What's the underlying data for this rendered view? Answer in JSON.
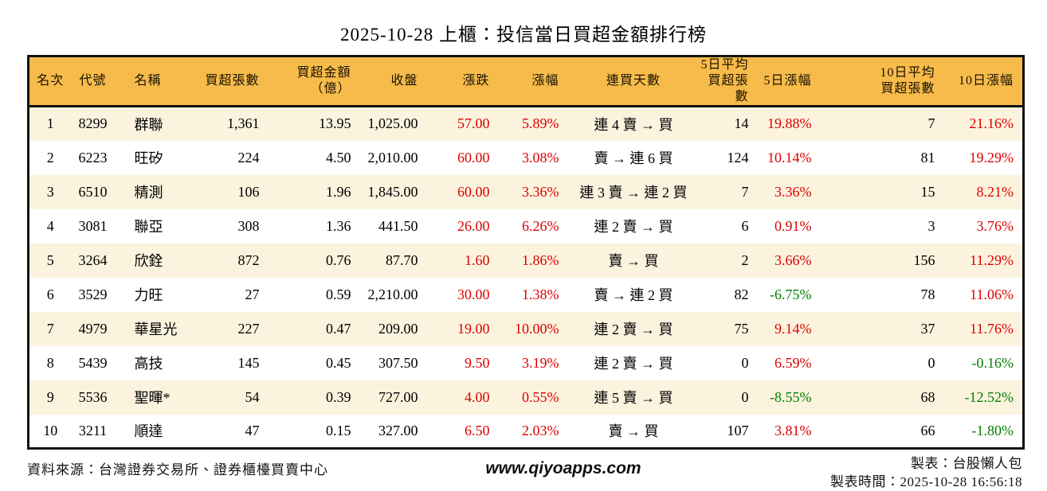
{
  "chart_data": {
    "type": "table",
    "title": "2025-10-28 上櫃：投信當日買超金額排行榜",
    "columns": [
      "名次",
      "代號",
      "名稱",
      "買超張數",
      "買超金額\n（億）",
      "收盤",
      "漲跌",
      "漲幅",
      "連買天數",
      "5日平均\n買超張數",
      "5日漲幅",
      "10日平均\n買超張數",
      "10日漲幅"
    ],
    "rows": [
      {
        "rank": "1",
        "code": "8299",
        "name": "群聯",
        "shares": "1,361",
        "amount": "13.95",
        "close": "1,025.00",
        "change": "57.00",
        "change_pct": "5.89%",
        "streak": "連 4 賣 → 買",
        "avg5": "14",
        "pct5": "19.88%",
        "avg10": "7",
        "pct10": "21.16%"
      },
      {
        "rank": "2",
        "code": "6223",
        "name": "旺矽",
        "shares": "224",
        "amount": "4.50",
        "close": "2,010.00",
        "change": "60.00",
        "change_pct": "3.08%",
        "streak": "賣 → 連 6 買",
        "avg5": "124",
        "pct5": "10.14%",
        "avg10": "81",
        "pct10": "19.29%"
      },
      {
        "rank": "3",
        "code": "6510",
        "name": "精測",
        "shares": "106",
        "amount": "1.96",
        "close": "1,845.00",
        "change": "60.00",
        "change_pct": "3.36%",
        "streak": "連 3 賣 → 連 2 買",
        "avg5": "7",
        "pct5": "3.36%",
        "avg10": "15",
        "pct10": "8.21%"
      },
      {
        "rank": "4",
        "code": "3081",
        "name": "聯亞",
        "shares": "308",
        "amount": "1.36",
        "close": "441.50",
        "change": "26.00",
        "change_pct": "6.26%",
        "streak": "連 2 賣 → 買",
        "avg5": "6",
        "pct5": "0.91%",
        "avg10": "3",
        "pct10": "3.76%"
      },
      {
        "rank": "5",
        "code": "3264",
        "name": "欣銓",
        "shares": "872",
        "amount": "0.76",
        "close": "87.70",
        "change": "1.60",
        "change_pct": "1.86%",
        "streak": "賣 → 買",
        "avg5": "2",
        "pct5": "3.66%",
        "avg10": "156",
        "pct10": "11.29%"
      },
      {
        "rank": "6",
        "code": "3529",
        "name": "力旺",
        "shares": "27",
        "amount": "0.59",
        "close": "2,210.00",
        "change": "30.00",
        "change_pct": "1.38%",
        "streak": "賣 → 連 2 買",
        "avg5": "82",
        "pct5": "-6.75%",
        "avg10": "78",
        "pct10": "11.06%"
      },
      {
        "rank": "7",
        "code": "4979",
        "name": "華星光",
        "shares": "227",
        "amount": "0.47",
        "close": "209.00",
        "change": "19.00",
        "change_pct": "10.00%",
        "streak": "連 2 賣 → 買",
        "avg5": "75",
        "pct5": "9.14%",
        "avg10": "37",
        "pct10": "11.76%"
      },
      {
        "rank": "8",
        "code": "5439",
        "name": "高技",
        "shares": "145",
        "amount": "0.45",
        "close": "307.50",
        "change": "9.50",
        "change_pct": "3.19%",
        "streak": "連 2 賣 → 買",
        "avg5": "0",
        "pct5": "6.59%",
        "avg10": "0",
        "pct10": "-0.16%"
      },
      {
        "rank": "9",
        "code": "5536",
        "name": "聖暉*",
        "shares": "54",
        "amount": "0.39",
        "close": "727.00",
        "change": "4.00",
        "change_pct": "0.55%",
        "streak": "連 5 賣 → 買",
        "avg5": "0",
        "pct5": "-8.55%",
        "avg10": "68",
        "pct10": "-12.52%"
      },
      {
        "rank": "10",
        "code": "3211",
        "name": "順達",
        "shares": "47",
        "amount": "0.15",
        "close": "327.00",
        "change": "6.50",
        "change_pct": "2.03%",
        "streak": "賣 → 買",
        "avg5": "107",
        "pct5": "3.81%",
        "avg10": "66",
        "pct10": "-1.80%"
      }
    ]
  },
  "footer": {
    "source": "資料來源：台灣證券交易所、證券櫃檯買賣中心",
    "website": "www.qiyoapps.com",
    "maker": "製表：台股懶人包",
    "made_at": "製表時間：2025-10-28 16:56:18"
  },
  "colors": {
    "header_bg": "#F7BB4B",
    "row_alt_bg": "#FBF3DE",
    "up_red": "#DD0000",
    "down_green": "#008000",
    "border": "#111111"
  }
}
